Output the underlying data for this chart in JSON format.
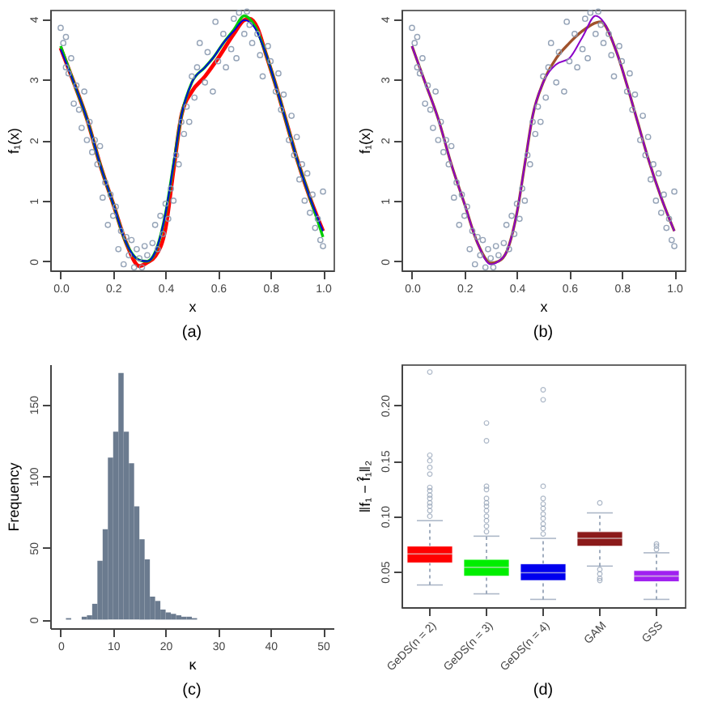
{
  "chart_data": [
    {
      "type": "scatter",
      "title": "(a)",
      "xlabel": "x",
      "ylabel": "f₁(x)",
      "xlim": [
        -0.04,
        1.04
      ],
      "ylim": [
        -0.15,
        4.15
      ],
      "xticks": [
        {
          "value": 0,
          "label": "0.0"
        },
        {
          "value": 0.2,
          "label": "0.2"
        },
        {
          "value": 0.4,
          "label": "0.4"
        },
        {
          "value": 0.6,
          "label": "0.6"
        },
        {
          "value": 0.8,
          "label": "0.8"
        },
        {
          "value": 1,
          "label": "1.0"
        }
      ],
      "yticks": [
        0,
        1,
        2,
        3,
        4
      ],
      "series": [
        {
          "type": "scatter",
          "marker": "circle",
          "color": "#8a9ab0",
          "x": [
            0.0,
            0.01,
            0.02,
            0.02,
            0.03,
            0.04,
            0.05,
            0.06,
            0.07,
            0.08,
            0.09,
            0.1,
            0.11,
            0.12,
            0.13,
            0.14,
            0.15,
            0.16,
            0.17,
            0.18,
            0.19,
            0.2,
            0.21,
            0.22,
            0.23,
            0.24,
            0.25,
            0.26,
            0.27,
            0.28,
            0.29,
            0.3,
            0.31,
            0.32,
            0.33,
            0.35,
            0.36,
            0.37,
            0.38,
            0.39,
            0.4,
            0.41,
            0.42,
            0.43,
            0.44,
            0.45,
            0.46,
            0.47,
            0.48,
            0.49,
            0.5,
            0.51,
            0.52,
            0.53,
            0.55,
            0.56,
            0.58,
            0.59,
            0.6,
            0.62,
            0.63,
            0.65,
            0.66,
            0.67,
            0.68,
            0.7,
            0.71,
            0.72,
            0.73,
            0.75,
            0.76,
            0.77,
            0.79,
            0.8,
            0.82,
            0.83,
            0.84,
            0.85,
            0.87,
            0.88,
            0.89,
            0.9,
            0.91,
            0.92,
            0.93,
            0.94,
            0.95,
            0.96,
            0.97,
            0.98,
            0.99,
            1.0,
            1.0
          ],
          "values": [
            3.85,
            3.6,
            3.2,
            3.7,
            3.1,
            3.35,
            2.6,
            2.9,
            2.5,
            2.2,
            2.8,
            2.0,
            2.3,
            1.8,
            2.0,
            1.6,
            1.9,
            1.05,
            1.3,
            0.6,
            1.1,
            0.75,
            0.9,
            0.2,
            0.5,
            -0.05,
            0.4,
            0.1,
            0.35,
            -0.1,
            0.2,
            0.05,
            -0.1,
            0.25,
            0.1,
            0.3,
            0.6,
            0.2,
            0.75,
            0.45,
            0.95,
            0.7,
            1.2,
            1.0,
            1.75,
            1.6,
            2.3,
            2.1,
            2.55,
            2.3,
            3.05,
            2.7,
            3.2,
            3.6,
            2.95,
            3.45,
            2.8,
            3.95,
            3.3,
            3.75,
            3.2,
            3.5,
            4.0,
            3.35,
            4.1,
            3.75,
            4.12,
            3.9,
            3.6,
            3.75,
            3.4,
            3.05,
            3.55,
            3.3,
            2.8,
            3.1,
            2.5,
            2.75,
            2.0,
            2.4,
            1.75,
            2.05,
            1.35,
            1.6,
            1.0,
            1.45,
            0.8,
            1.1,
            0.55,
            0.7,
            0.35,
            0.25,
            1.15
          ]
        },
        {
          "type": "line",
          "marker": "none",
          "color": "#ff0000",
          "x": [
            0,
            0.05,
            0.1,
            0.15,
            0.2,
            0.25,
            0.3,
            0.33,
            0.36,
            0.4,
            0.43,
            0.46,
            0.5,
            0.55,
            0.6,
            0.66,
            0.7,
            0.72,
            0.75,
            0.78,
            0.82,
            0.86,
            0.9,
            0.95,
            1.0
          ],
          "values": [
            3.52,
            2.95,
            2.35,
            1.6,
            0.95,
            0.3,
            -0.08,
            -0.02,
            0.08,
            0.55,
            1.5,
            2.4,
            2.8,
            3.05,
            3.35,
            3.75,
            3.98,
            4.0,
            3.85,
            3.45,
            2.9,
            2.3,
            1.7,
            1.05,
            0.5
          ]
        },
        {
          "type": "line",
          "marker": "none",
          "color": "#00cc00",
          "x": [
            0,
            0.05,
            0.1,
            0.15,
            0.2,
            0.25,
            0.3,
            0.33,
            0.36,
            0.4,
            0.43,
            0.46,
            0.5,
            0.55,
            0.58,
            0.62,
            0.66,
            0.7,
            0.74,
            0.78,
            0.82,
            0.86,
            0.9,
            0.95,
            1.0
          ],
          "values": [
            3.55,
            2.95,
            2.35,
            1.6,
            0.95,
            0.3,
            0.02,
            0.0,
            0.15,
            0.8,
            1.6,
            2.4,
            2.95,
            3.2,
            3.35,
            3.6,
            3.82,
            4.05,
            3.88,
            3.45,
            2.9,
            2.3,
            1.7,
            1.05,
            0.4
          ]
        },
        {
          "type": "line",
          "marker": "none",
          "color": "#0000dd",
          "x": [
            0,
            0.05,
            0.1,
            0.15,
            0.2,
            0.25,
            0.3,
            0.33,
            0.36,
            0.4,
            0.43,
            0.46,
            0.5,
            0.55,
            0.58,
            0.62,
            0.66,
            0.7,
            0.74,
            0.78,
            0.82,
            0.86,
            0.9,
            0.95,
            1.0
          ],
          "values": [
            3.5,
            2.95,
            2.35,
            1.6,
            0.95,
            0.3,
            0.02,
            0.0,
            0.15,
            0.8,
            1.6,
            2.4,
            2.95,
            3.2,
            3.35,
            3.6,
            3.8,
            3.98,
            3.85,
            3.45,
            2.9,
            2.3,
            1.7,
            1.05,
            0.5
          ]
        }
      ]
    },
    {
      "type": "scatter",
      "title": "(b)",
      "xlabel": "x",
      "ylabel": "f₁(x)",
      "xlim": [
        -0.04,
        1.04
      ],
      "ylim": [
        -0.15,
        4.15
      ],
      "xticks": [
        {
          "value": 0,
          "label": "0.0"
        },
        {
          "value": 0.2,
          "label": "0.2"
        },
        {
          "value": 0.4,
          "label": "0.4"
        },
        {
          "value": 0.6,
          "label": "0.6"
        },
        {
          "value": 0.8,
          "label": "0.8"
        },
        {
          "value": 1,
          "label": "1.0"
        }
      ],
      "yticks": [
        0,
        1,
        2,
        3,
        4
      ],
      "series": [
        {
          "type": "scatter",
          "marker": "circle",
          "color": "#8a9ab0",
          "x": [
            0.0,
            0.01,
            0.02,
            0.02,
            0.03,
            0.04,
            0.05,
            0.06,
            0.07,
            0.08,
            0.09,
            0.1,
            0.11,
            0.12,
            0.13,
            0.14,
            0.15,
            0.16,
            0.17,
            0.18,
            0.19,
            0.2,
            0.21,
            0.22,
            0.23,
            0.24,
            0.25,
            0.26,
            0.27,
            0.28,
            0.29,
            0.3,
            0.31,
            0.32,
            0.33,
            0.35,
            0.36,
            0.37,
            0.38,
            0.39,
            0.4,
            0.41,
            0.42,
            0.43,
            0.44,
            0.45,
            0.46,
            0.47,
            0.48,
            0.49,
            0.5,
            0.51,
            0.52,
            0.53,
            0.55,
            0.56,
            0.58,
            0.59,
            0.6,
            0.62,
            0.63,
            0.65,
            0.66,
            0.67,
            0.68,
            0.7,
            0.71,
            0.72,
            0.73,
            0.75,
            0.76,
            0.77,
            0.79,
            0.8,
            0.82,
            0.83,
            0.84,
            0.85,
            0.87,
            0.88,
            0.89,
            0.9,
            0.91,
            0.92,
            0.93,
            0.94,
            0.95,
            0.96,
            0.97,
            0.98,
            0.99,
            1.0,
            1.0
          ],
          "values": [
            3.85,
            3.6,
            3.2,
            3.7,
            3.1,
            3.35,
            2.6,
            2.9,
            2.5,
            2.2,
            2.8,
            2.0,
            2.3,
            1.8,
            2.0,
            1.6,
            1.9,
            1.05,
            1.3,
            0.6,
            1.1,
            0.75,
            0.9,
            0.2,
            0.5,
            -0.05,
            0.4,
            0.1,
            0.35,
            -0.1,
            0.2,
            0.05,
            -0.1,
            0.25,
            0.1,
            0.3,
            0.6,
            0.2,
            0.75,
            0.45,
            0.95,
            0.7,
            1.2,
            1.0,
            1.75,
            1.6,
            2.3,
            2.1,
            2.55,
            2.3,
            3.05,
            2.7,
            3.2,
            3.6,
            2.95,
            3.45,
            2.8,
            3.95,
            3.3,
            3.75,
            3.2,
            3.5,
            4.0,
            3.35,
            4.1,
            3.75,
            4.12,
            3.9,
            3.6,
            3.75,
            3.4,
            3.05,
            3.55,
            3.3,
            2.8,
            3.1,
            2.5,
            2.75,
            2.0,
            2.4,
            1.75,
            2.05,
            1.35,
            1.6,
            1.0,
            1.45,
            0.8,
            1.1,
            0.55,
            0.7,
            0.35,
            0.25,
            1.15
          ]
        },
        {
          "type": "line",
          "marker": "none",
          "color": "#a0522d",
          "x": [
            0,
            0.05,
            0.1,
            0.15,
            0.2,
            0.25,
            0.3,
            0.33,
            0.36,
            0.4,
            0.43,
            0.46,
            0.5,
            0.55,
            0.6,
            0.65,
            0.72,
            0.78,
            0.82,
            0.86,
            0.9,
            0.95,
            1.0
          ],
          "values": [
            3.55,
            2.95,
            2.35,
            1.6,
            0.95,
            0.3,
            -0.03,
            0.0,
            0.15,
            0.8,
            1.6,
            2.4,
            2.95,
            3.35,
            3.6,
            3.8,
            3.95,
            3.45,
            2.9,
            2.3,
            1.7,
            1.05,
            0.5
          ]
        },
        {
          "type": "line",
          "marker": "none",
          "color": "#8b00c8",
          "x": [
            0,
            0.05,
            0.1,
            0.15,
            0.2,
            0.25,
            0.3,
            0.33,
            0.36,
            0.4,
            0.43,
            0.46,
            0.5,
            0.55,
            0.6,
            0.65,
            0.7,
            0.73,
            0.78,
            0.82,
            0.86,
            0.9,
            0.95,
            1.0
          ],
          "values": [
            3.55,
            2.95,
            2.35,
            1.6,
            0.95,
            0.3,
            -0.05,
            0.0,
            0.15,
            0.8,
            1.6,
            2.4,
            2.95,
            3.25,
            3.35,
            3.7,
            4.05,
            3.95,
            3.45,
            2.9,
            2.3,
            1.7,
            1.05,
            0.5
          ]
        }
      ]
    },
    {
      "type": "histogram",
      "title": "(c)",
      "xlabel": "κ",
      "ylabel": "Frequency",
      "color": "#6b7b8f",
      "xlim": [
        -2,
        52
      ],
      "ylim": [
        -6,
        178
      ],
      "xticks": [
        0,
        10,
        20,
        30,
        40,
        50
      ],
      "yticks": [
        0,
        50,
        100,
        150
      ],
      "bins": [
        0,
        1,
        2,
        3,
        4,
        5,
        6,
        7,
        8,
        9,
        10,
        11,
        12,
        13,
        14,
        15,
        16,
        17,
        18,
        19,
        20,
        21,
        22,
        23,
        24,
        25,
        26
      ],
      "values": [
        0,
        1,
        0,
        0,
        2,
        3,
        11,
        41,
        63,
        113,
        131,
        172,
        131,
        109,
        79,
        56,
        42,
        16,
        13,
        7,
        5,
        4,
        3,
        2,
        2,
        1
      ]
    },
    {
      "type": "box",
      "title": "(d)",
      "ylabel": "‖f₁ − f̂₁‖₂",
      "ylim": [
        0.018,
        0.237
      ],
      "yticks": [
        0.05,
        {
          "value": 0.1,
          "label": "0.10"
        },
        0.15,
        {
          "value": 0.2,
          "label": "0.20"
        }
      ],
      "categories": [
        "GeDS(n = 2)",
        "GeDS(n = 3)",
        "GeDS(n = 4)",
        "GAM",
        "GSS"
      ],
      "colors": [
        "#ff0000",
        "#00ee00",
        "#0000ee",
        "#8b1a1a",
        "#a020f0"
      ],
      "boxes": [
        {
          "low": 0.038,
          "q1": 0.058,
          "median": 0.066,
          "q3": 0.073,
          "high": 0.096,
          "outliers": [
            0.1,
            0.105,
            0.109,
            0.112,
            0.116,
            0.119,
            0.123,
            0.126,
            0.138,
            0.144,
            0.15,
            0.155,
            0.23
          ]
        },
        {
          "low": 0.03,
          "q1": 0.046,
          "median": 0.054,
          "q3": 0.061,
          "high": 0.082,
          "outliers": [
            0.086,
            0.091,
            0.096,
            0.1,
            0.105,
            0.109,
            0.112,
            0.116,
            0.124,
            0.127,
            0.168,
            0.184
          ]
        },
        {
          "low": 0.025,
          "q1": 0.042,
          "median": 0.049,
          "q3": 0.057,
          "high": 0.08,
          "outliers": [
            0.084,
            0.089,
            0.093,
            0.098,
            0.102,
            0.107,
            0.111,
            0.116,
            0.127,
            0.205,
            0.214
          ]
        },
        {
          "low": 0.055,
          "q1": 0.073,
          "median": 0.08,
          "q3": 0.086,
          "high": 0.103,
          "outliers": [
            0.052,
            0.048,
            0.044,
            0.042,
            0.112
          ]
        },
        {
          "low": 0.025,
          "q1": 0.041,
          "median": 0.046,
          "q3": 0.051,
          "high": 0.067,
          "outliers": [
            0.07,
            0.073,
            0.075
          ]
        }
      ]
    }
  ]
}
